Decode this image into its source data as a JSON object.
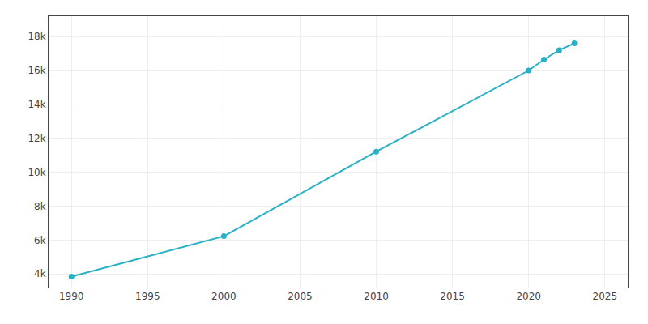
{
  "chart_data": {
    "type": "line",
    "x": [
      1990,
      2000,
      2010,
      2020,
      2021,
      2022,
      2023
    ],
    "values": [
      3848,
      6228,
      11216,
      15999,
      16644,
      17200,
      17597
    ],
    "color": "#2ab0c5",
    "marker": "circle",
    "xlim": [
      1988.5,
      2026.5
    ],
    "ylim": [
      3200,
      19200
    ],
    "xticks": [
      1990,
      1995,
      2000,
      2005,
      2010,
      2015,
      2020,
      2025
    ],
    "yticks": [
      {
        "value": 4000,
        "label": "4k"
      },
      {
        "value": 6000,
        "label": "6k"
      },
      {
        "value": 8000,
        "label": "8k"
      },
      {
        "value": 10000,
        "label": "10k"
      },
      {
        "value": 12000,
        "label": "12k"
      },
      {
        "value": 14000,
        "label": "14k"
      },
      {
        "value": 16000,
        "label": "16k"
      },
      {
        "value": 18000,
        "label": "18k"
      }
    ],
    "grid": true
  }
}
